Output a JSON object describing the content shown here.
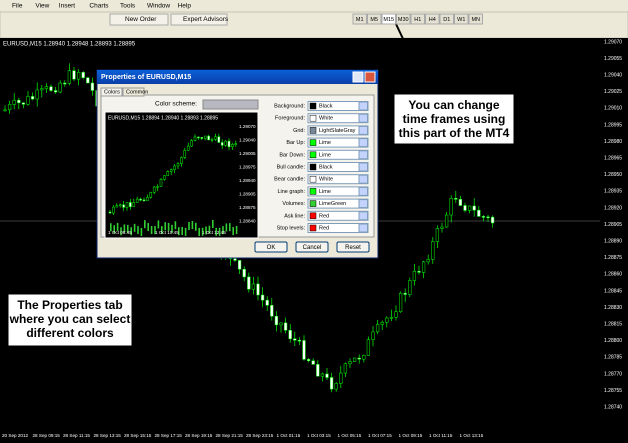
{
  "menu": [
    "File",
    "View",
    "Insert",
    "Charts",
    "Tools",
    "Window",
    "Help"
  ],
  "toolbar": {
    "new_order": "New Order",
    "expert_advisors": "Expert Advisors",
    "timeframes": [
      "M1",
      "M5",
      "M15",
      "M30",
      "H1",
      "H4",
      "D1",
      "W1",
      "MN"
    ]
  },
  "chart": {
    "header": "EURUSD,M15  1.28940 1.28948 1.28893 1.28895",
    "price_labels": [
      "1.29070",
      "1.29055",
      "1.29040",
      "1.29025",
      "1.29010",
      "1.28995",
      "1.28980",
      "1.28965",
      "1.28950",
      "1.28935",
      "1.28920",
      "1.28905",
      "1.28890",
      "1.28875",
      "1.28860",
      "1.28845",
      "1.28830",
      "1.28815",
      "1.28800",
      "1.28785",
      "1.28770",
      "1.28755",
      "1.28740"
    ],
    "time_labels": [
      "20 Sep 2012",
      "28 Sep 09:15",
      "28 Sep 11:15",
      "28 Sep 13:15",
      "28 Sep 15:15",
      "28 Sep 17:15",
      "28 Sep 19:15",
      "28 Sep 21:15",
      "28 Sep 23:15",
      "1 Oct 01:15",
      "1 Oct 03:15",
      "1 Oct 05:15",
      "1 Oct 07:15",
      "1 Oct 09:15",
      "1 Oct 11:15",
      "1 Oct 13:15"
    ]
  },
  "dialog": {
    "title": "Properties of EURUSD,M15",
    "tabs": [
      "Colors",
      "Common"
    ],
    "color_scheme_label": "Color scheme:",
    "preview": {
      "header": "EURUSD,M15  1.28894 1.28940 1.28893 1.28895",
      "price_labels": [
        "1.29070",
        "1.29040",
        "1.29005",
        "1.28975",
        "1.28940",
        "1.28905",
        "1.28875",
        "1.28840"
      ],
      "time_labels": [
        "1 Oct 06:45",
        "1 Oct 10:45",
        "1 Oct 12:45"
      ]
    },
    "colors": [
      {
        "label": "Background:",
        "value": "Black",
        "swatch": "#000000"
      },
      {
        "label": "Foreground:",
        "value": "White",
        "swatch": "#ffffff"
      },
      {
        "label": "Grid:",
        "value": "LightSlateGray",
        "swatch": "#778899"
      },
      {
        "label": "Bar Up:",
        "value": "Lime",
        "swatch": "#00ff00"
      },
      {
        "label": "Bar Down:",
        "value": "Lime",
        "swatch": "#00ff00"
      },
      {
        "label": "Bull candle:",
        "value": "Black",
        "swatch": "#000000"
      },
      {
        "label": "Bear candle:",
        "value": "White",
        "swatch": "#ffffff"
      },
      {
        "label": "Line graph:",
        "value": "Lime",
        "swatch": "#00ff00"
      },
      {
        "label": "Volumes:",
        "value": "LimeGreen",
        "swatch": "#32cd32"
      },
      {
        "label": "Ask line:",
        "value": "Red",
        "swatch": "#ff0000"
      },
      {
        "label": "Stop levels:",
        "value": "Red",
        "swatch": "#ff0000"
      }
    ],
    "buttons": [
      "OK",
      "Cancel",
      "Reset"
    ]
  },
  "callouts": [
    {
      "lines": [
        "You can change",
        "time frames using",
        "this part of the MT4"
      ]
    },
    {
      "lines": [
        "The Properties tab",
        "where you can select",
        "different colors"
      ]
    }
  ]
}
